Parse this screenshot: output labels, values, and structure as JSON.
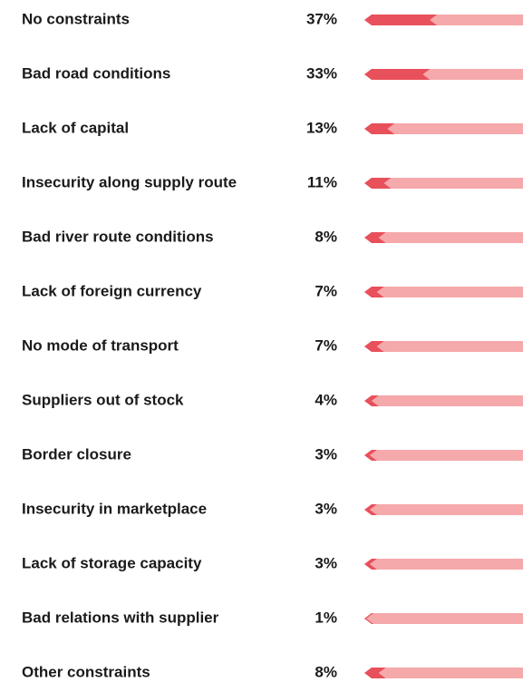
{
  "chart_data": {
    "type": "bar",
    "orientation": "horizontal",
    "categories": [
      "No constraints",
      "Bad road conditions",
      "Lack of capital",
      "Insecurity along supply route",
      "Bad river route conditions",
      "Lack of foreign currency",
      "No mode of transport",
      "Suppliers out of stock",
      "Border closure",
      "Insecurity in marketplace",
      "Lack of storage capacity",
      "Bad relations with supplier",
      "Other constraints"
    ],
    "values": [
      37,
      33,
      13,
      11,
      8,
      7,
      7,
      4,
      3,
      3,
      3,
      1,
      8
    ],
    "value_labels": [
      "37%",
      "33%",
      "13%",
      "11%",
      "8%",
      "7%",
      "7%",
      "4%",
      "3%",
      "3%",
      "3%",
      "1%",
      "8%"
    ],
    "xlim": [
      0,
      100
    ],
    "color": "#e8505b",
    "track_color": "#f5a9ab"
  }
}
